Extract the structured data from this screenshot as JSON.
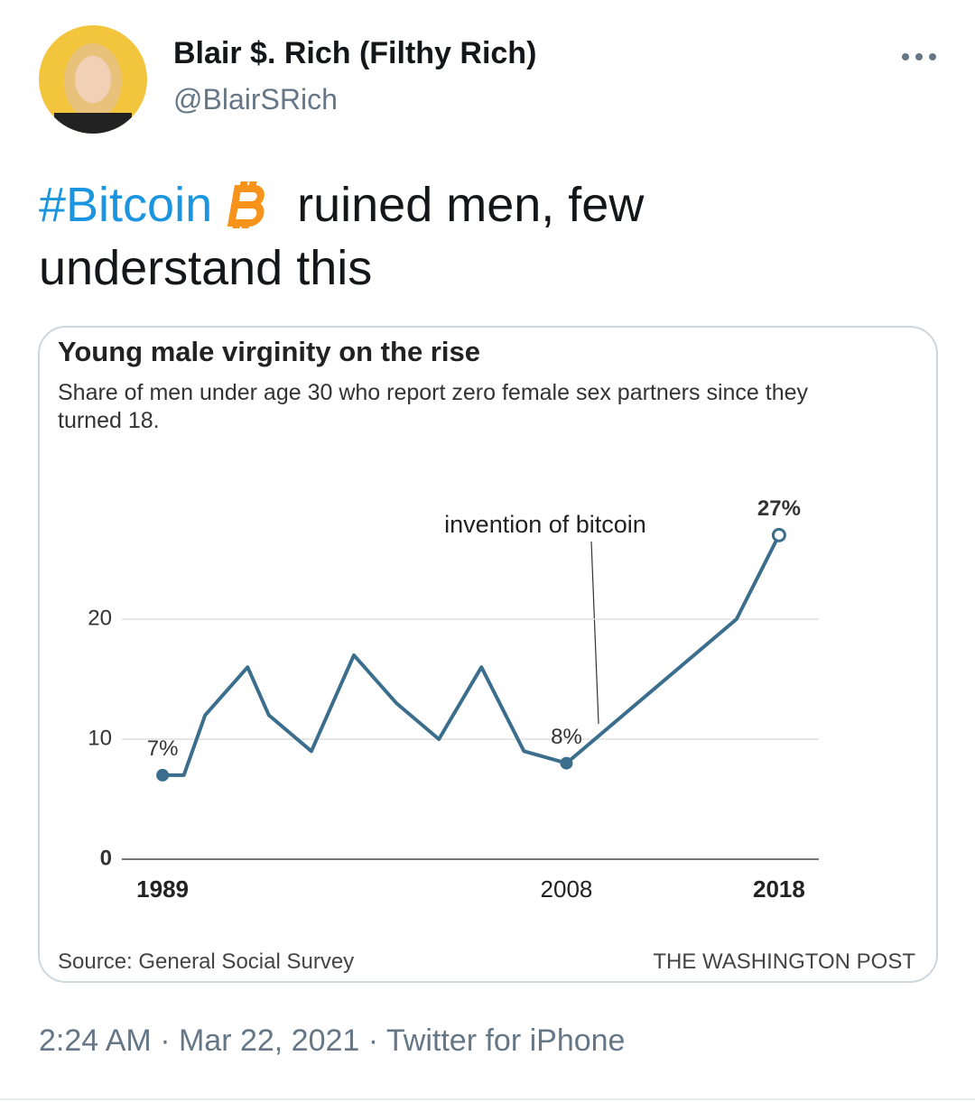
{
  "tweet": {
    "name": "Blair $. Rich (Filthy Rich)",
    "handle": "@BlairSRich",
    "hashtag": "#Bitcoin",
    "text": "ruined men, few understand this",
    "timestamp": "2:24 AM · Mar 22, 2021 · Twitter for iPhone"
  },
  "chart_data": {
    "type": "line",
    "title": "Young male virginity on the rise",
    "subtitle": "Share of men under age 30 who report zero female sex partners since they turned 18.",
    "x": [
      1989,
      1990,
      1991,
      1993,
      1994,
      1996,
      1998,
      2000,
      2002,
      2004,
      2006,
      2008,
      2016,
      2018
    ],
    "values": [
      7,
      7,
      12,
      16,
      12,
      9,
      17,
      13,
      10,
      16,
      9,
      8,
      20,
      27
    ],
    "value_labels": [
      "7%",
      null,
      null,
      null,
      null,
      null,
      null,
      null,
      null,
      null,
      null,
      "8%",
      null,
      "27%"
    ],
    "color": "#3b6e8d",
    "xlim": [
      1987,
      2020
    ],
    "xticks": [
      1989,
      2008,
      2018
    ],
    "ylim": [
      0,
      30
    ],
    "yticks": [
      0,
      10,
      20
    ],
    "grid": true,
    "annotation": "invention of bitcoin",
    "source": "Source: General Social Survey",
    "credit": "THE WASHINGTON POST"
  }
}
